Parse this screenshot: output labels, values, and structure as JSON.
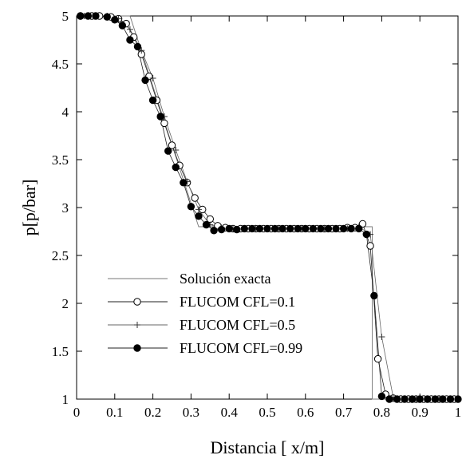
{
  "chart_data": {
    "type": "line",
    "title": "",
    "xlabel": "Distancia [ x/m]",
    "ylabel": "p[p/bar]",
    "xlim": [
      0,
      1
    ],
    "ylim": [
      1,
      5
    ],
    "x_ticks": [
      "0",
      "0.1",
      "0.2",
      "0.3",
      "0.4",
      "0.5",
      "0.6",
      "0.7",
      "0.8",
      "0.9",
      "1"
    ],
    "y_ticks": [
      "1",
      "1.5",
      "2",
      "2.5",
      "3",
      "3.5",
      "4",
      "4.5",
      "5"
    ],
    "grid": false,
    "legend_position": "bottom-left",
    "series": [
      {
        "name": "Solución exacta",
        "marker": "none",
        "x": [
          0,
          0.14,
          0.32,
          0.775,
          0.775,
          1
        ],
        "y": [
          5,
          5,
          2.8,
          2.8,
          1,
          1
        ]
      },
      {
        "name": "FLUCOM  CFL=0.1",
        "marker": "open-circle",
        "x": [
          0.01,
          0.04,
          0.06,
          0.09,
          0.11,
          0.13,
          0.15,
          0.17,
          0.19,
          0.21,
          0.23,
          0.25,
          0.27,
          0.29,
          0.31,
          0.33,
          0.35,
          0.37,
          0.39,
          0.41,
          0.43,
          0.45,
          0.47,
          0.49,
          0.51,
          0.53,
          0.55,
          0.57,
          0.59,
          0.61,
          0.63,
          0.65,
          0.67,
          0.69,
          0.71,
          0.73,
          0.75,
          0.77,
          0.79,
          0.81,
          0.83,
          0.85,
          0.87,
          0.89,
          0.91,
          0.93,
          0.95,
          0.97,
          0.99
        ],
        "y": [
          5,
          5,
          5,
          4.99,
          4.97,
          4.92,
          4.78,
          4.6,
          4.37,
          4.12,
          3.88,
          3.65,
          3.44,
          3.26,
          3.1,
          2.98,
          2.88,
          2.81,
          2.79,
          2.78,
          2.78,
          2.78,
          2.78,
          2.78,
          2.78,
          2.78,
          2.78,
          2.78,
          2.78,
          2.78,
          2.78,
          2.78,
          2.78,
          2.78,
          2.79,
          2.79,
          2.83,
          2.6,
          1.42,
          1.05,
          1.01,
          1,
          1,
          1,
          1,
          1,
          1,
          1,
          1
        ]
      },
      {
        "name": "FLUCOM  CFL=0.5",
        "marker": "plus",
        "x": [
          0.02,
          0.05,
          0.08,
          0.11,
          0.14,
          0.17,
          0.2,
          0.23,
          0.26,
          0.29,
          0.32,
          0.35,
          0.38,
          0.41,
          0.44,
          0.47,
          0.5,
          0.53,
          0.56,
          0.59,
          0.62,
          0.65,
          0.68,
          0.71,
          0.74,
          0.77,
          0.8,
          0.83,
          0.86,
          0.89,
          0.92,
          0.95,
          0.98
        ],
        "y": [
          5,
          5,
          5,
          4.97,
          4.86,
          4.64,
          4.35,
          3.95,
          3.6,
          3.27,
          2.98,
          2.82,
          2.79,
          2.78,
          2.78,
          2.78,
          2.78,
          2.78,
          2.78,
          2.78,
          2.78,
          2.78,
          2.78,
          2.78,
          2.8,
          2.72,
          1.65,
          1.02,
          1,
          1,
          1,
          1,
          1
        ]
      },
      {
        "name": "FLUCOM  CFL=0.99",
        "marker": "filled-circle",
        "x": [
          0.01,
          0.03,
          0.05,
          0.08,
          0.1,
          0.12,
          0.14,
          0.16,
          0.18,
          0.2,
          0.22,
          0.24,
          0.26,
          0.28,
          0.3,
          0.32,
          0.34,
          0.36,
          0.38,
          0.4,
          0.42,
          0.44,
          0.46,
          0.48,
          0.5,
          0.52,
          0.54,
          0.56,
          0.58,
          0.6,
          0.62,
          0.64,
          0.66,
          0.68,
          0.7,
          0.72,
          0.74,
          0.76,
          0.78,
          0.8,
          0.82,
          0.84,
          0.86,
          0.88,
          0.9,
          0.92,
          0.94,
          0.96,
          0.98,
          1.0
        ],
        "y": [
          5,
          5,
          5,
          4.99,
          4.96,
          4.9,
          4.75,
          4.68,
          4.33,
          4.12,
          3.95,
          3.59,
          3.42,
          3.26,
          3.01,
          2.91,
          2.82,
          2.76,
          2.77,
          2.78,
          2.77,
          2.78,
          2.78,
          2.78,
          2.78,
          2.78,
          2.78,
          2.78,
          2.78,
          2.78,
          2.78,
          2.78,
          2.78,
          2.78,
          2.78,
          2.78,
          2.78,
          2.72,
          2.08,
          1.03,
          1,
          1,
          1,
          1,
          1,
          1,
          1,
          1,
          1,
          1
        ]
      }
    ]
  }
}
